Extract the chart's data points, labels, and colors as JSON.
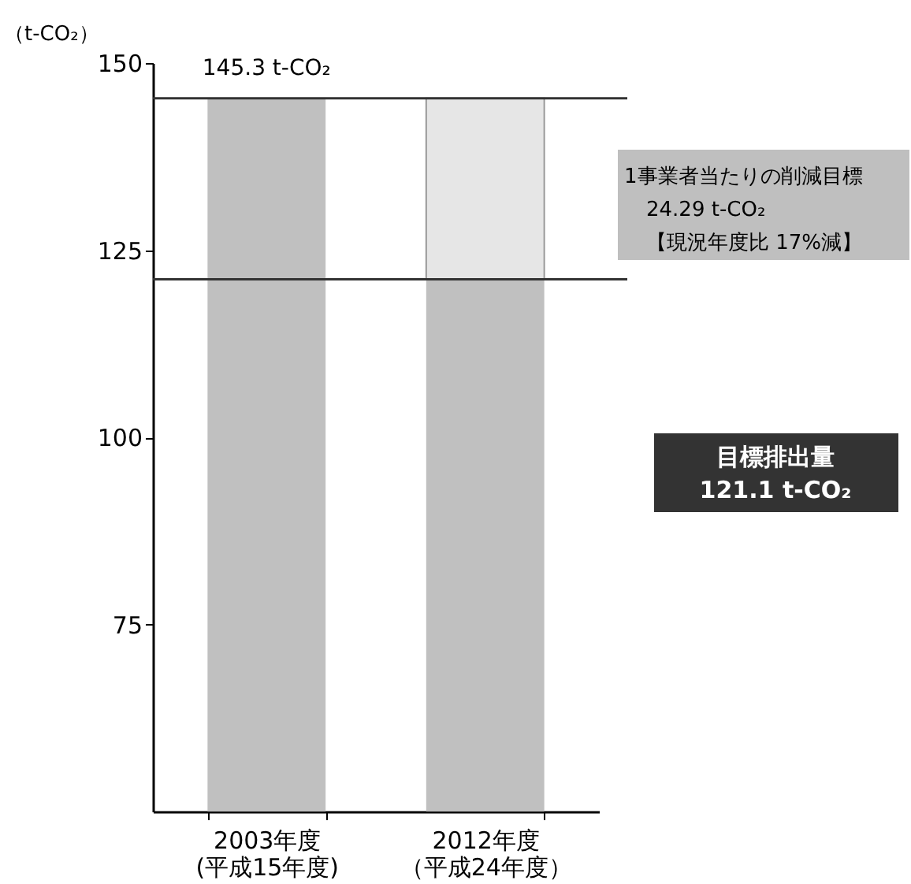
{
  "chart_data": {
    "type": "bar",
    "ylabel": "（t-CO₂）",
    "categories": [
      "2003年度(平成15年度)",
      "2012年度（平成24年度）"
    ],
    "series": [
      {
        "color": "#c0c0c0",
        "values": [
          145.3,
          121.1
        ]
      }
    ],
    "bands": [
      {
        "axis": "y",
        "from": 121.1,
        "to": 145.3,
        "color": "#e6e6e6"
      }
    ],
    "ylim": [
      50,
      150
    ],
    "yticks": [
      75,
      100,
      125,
      150
    ],
    "ref_lines": [
      {
        "axis": "y",
        "value": 145.3,
        "color": "#333333"
      },
      {
        "axis": "y",
        "value": 121.1,
        "color": "#333333"
      }
    ],
    "annotations": [
      {
        "text": "145.3 t-CO₂",
        "x": "2003年度(平成15年度)",
        "y": 145.3
      },
      "1事業者当たりの削減目標\n24.29 t-CO₂\n【現況年度比 17%減】",
      "目標排出量\n121.1 t-CO₂"
    ],
    "grid": false
  }
}
